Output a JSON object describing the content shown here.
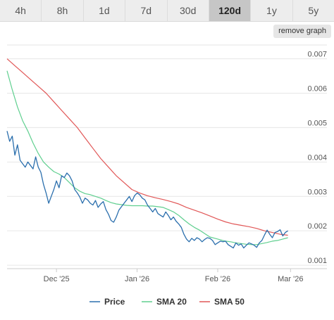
{
  "range_selector": {
    "buttons": [
      "4h",
      "8h",
      "1d",
      "7d",
      "30d",
      "120d",
      "1y",
      "5y"
    ],
    "active": "120d"
  },
  "remove_graph_label": "remove graph",
  "chart_data": {
    "type": "line",
    "title": "",
    "xlabel": "",
    "ylabel": "",
    "x_ticks": [
      {
        "label": "Dec '25",
        "x": 19
      },
      {
        "label": "Jan '26",
        "x": 50
      },
      {
        "label": "Feb '26",
        "x": 81
      },
      {
        "label": "Mar '26",
        "x": 109
      }
    ],
    "x_range": [
      0,
      123
    ],
    "y_ticks": [
      0.001,
      0.002,
      0.003,
      0.004,
      0.005,
      0.006,
      0.007
    ],
    "y_tick_labels": [
      "0.001",
      "0.002",
      "0.003",
      "0.004",
      "0.005",
      "0.006",
      "0.007"
    ],
    "ylim": [
      0.0009,
      0.0074
    ],
    "grid": true,
    "legend_position": "bottom",
    "colors": {
      "price": "#2b6fad",
      "sma20": "#5fcf8f",
      "sma50": "#e15757"
    },
    "series": [
      {
        "name": "Price",
        "color": "#2b6fad",
        "points": [
          [
            0,
            0.0049
          ],
          [
            1,
            0.0046
          ],
          [
            2,
            0.00475
          ],
          [
            3,
            0.0042
          ],
          [
            4,
            0.0045
          ],
          [
            5,
            0.00405
          ],
          [
            6,
            0.00395
          ],
          [
            7,
            0.00385
          ],
          [
            8,
            0.004
          ],
          [
            9,
            0.0039
          ],
          [
            10,
            0.0038
          ],
          [
            11,
            0.00415
          ],
          [
            12,
            0.00385
          ],
          [
            13,
            0.0037
          ],
          [
            14,
            0.00335
          ],
          [
            15,
            0.0031
          ],
          [
            16,
            0.0028
          ],
          [
            17,
            0.003
          ],
          [
            18,
            0.0032
          ],
          [
            19,
            0.00345
          ],
          [
            20,
            0.00325
          ],
          [
            21,
            0.0036
          ],
          [
            22,
            0.00355
          ],
          [
            23,
            0.00368
          ],
          [
            24,
            0.0036
          ],
          [
            25,
            0.00345
          ],
          [
            26,
            0.0032
          ],
          [
            27,
            0.0031
          ],
          [
            28,
            0.00298
          ],
          [
            29,
            0.0028
          ],
          [
            30,
            0.00295
          ],
          [
            31,
            0.0029
          ],
          [
            32,
            0.0028
          ],
          [
            33,
            0.00275
          ],
          [
            34,
            0.00288
          ],
          [
            35,
            0.00268
          ],
          [
            36,
            0.00278
          ],
          [
            37,
            0.00285
          ],
          [
            38,
            0.00262
          ],
          [
            39,
            0.00248
          ],
          [
            40,
            0.0023
          ],
          [
            41,
            0.00225
          ],
          [
            42,
            0.0024
          ],
          [
            43,
            0.0026
          ],
          [
            44,
            0.0027
          ],
          [
            45,
            0.0028
          ],
          [
            46,
            0.0029
          ],
          [
            47,
            0.003
          ],
          [
            48,
            0.00285
          ],
          [
            49,
            0.00302
          ],
          [
            50,
            0.0031
          ],
          [
            51,
            0.00305
          ],
          [
            52,
            0.00295
          ],
          [
            53,
            0.0029
          ],
          [
            54,
            0.00275
          ],
          [
            55,
            0.00265
          ],
          [
            56,
            0.00255
          ],
          [
            57,
            0.00265
          ],
          [
            58,
            0.0025
          ],
          [
            59,
            0.00245
          ],
          [
            60,
            0.0024
          ],
          [
            61,
            0.00255
          ],
          [
            62,
            0.00245
          ],
          [
            63,
            0.00232
          ],
          [
            64,
            0.0024
          ],
          [
            65,
            0.00228
          ],
          [
            66,
            0.0022
          ],
          [
            67,
            0.0021
          ],
          [
            68,
            0.0019
          ],
          [
            69,
            0.00176
          ],
          [
            70,
            0.00168
          ],
          [
            71,
            0.00178
          ],
          [
            72,
            0.00172
          ],
          [
            73,
            0.0018
          ],
          [
            74,
            0.00176
          ],
          [
            75,
            0.00168
          ],
          [
            76,
            0.00175
          ],
          [
            77,
            0.0018
          ],
          [
            78,
            0.00178
          ],
          [
            79,
            0.00172
          ],
          [
            80,
            0.0016
          ],
          [
            81,
            0.00165
          ],
          [
            82,
            0.0017
          ],
          [
            83,
            0.00168
          ],
          [
            84,
            0.0017
          ],
          [
            85,
            0.0016
          ],
          [
            86,
            0.00155
          ],
          [
            87,
            0.0015
          ],
          [
            88,
            0.00165
          ],
          [
            89,
            0.00158
          ],
          [
            90,
            0.00162
          ],
          [
            91,
            0.0015
          ],
          [
            92,
            0.00158
          ],
          [
            93,
            0.00165
          ],
          [
            94,
            0.00162
          ],
          [
            95,
            0.00158
          ],
          [
            96,
            0.00152
          ],
          [
            97,
            0.00165
          ],
          [
            98,
            0.00172
          ],
          [
            99,
            0.00188
          ],
          [
            100,
            0.00202
          ],
          [
            101,
            0.0019
          ],
          [
            102,
            0.0018
          ],
          [
            103,
            0.00195
          ],
          [
            104,
            0.00198
          ],
          [
            105,
            0.00203
          ],
          [
            106,
            0.00185
          ],
          [
            107,
            0.00195
          ],
          [
            108,
            0.002
          ]
        ]
      },
      {
        "name": "SMA 20",
        "color": "#5fcf8f",
        "points": [
          [
            0,
            0.00665
          ],
          [
            2,
            0.0061
          ],
          [
            4,
            0.0056
          ],
          [
            6,
            0.0052
          ],
          [
            8,
            0.0049
          ],
          [
            10,
            0.00455
          ],
          [
            12,
            0.00425
          ],
          [
            14,
            0.004
          ],
          [
            16,
            0.00385
          ],
          [
            18,
            0.00372
          ],
          [
            20,
            0.00365
          ],
          [
            22,
            0.00355
          ],
          [
            24,
            0.0034
          ],
          [
            26,
            0.00325
          ],
          [
            28,
            0.00315
          ],
          [
            30,
            0.00308
          ],
          [
            32,
            0.00305
          ],
          [
            34,
            0.003
          ],
          [
            36,
            0.00295
          ],
          [
            38,
            0.00288
          ],
          [
            40,
            0.00282
          ],
          [
            42,
            0.00278
          ],
          [
            44,
            0.00276
          ],
          [
            46,
            0.00274
          ],
          [
            48,
            0.00273
          ],
          [
            50,
            0.00273
          ],
          [
            52,
            0.00273
          ],
          [
            54,
            0.00272
          ],
          [
            56,
            0.00272
          ],
          [
            58,
            0.0027
          ],
          [
            60,
            0.00268
          ],
          [
            62,
            0.00262
          ],
          [
            64,
            0.00255
          ],
          [
            66,
            0.00245
          ],
          [
            68,
            0.00232
          ],
          [
            70,
            0.0022
          ],
          [
            72,
            0.0021
          ],
          [
            74,
            0.00202
          ],
          [
            76,
            0.00192
          ],
          [
            78,
            0.00182
          ],
          [
            80,
            0.00178
          ],
          [
            82,
            0.00174
          ],
          [
            84,
            0.0017
          ],
          [
            86,
            0.00168
          ],
          [
            88,
            0.00165
          ],
          [
            90,
            0.00163
          ],
          [
            92,
            0.00161
          ],
          [
            94,
            0.0016
          ],
          [
            96,
            0.0016
          ],
          [
            98,
            0.00163
          ],
          [
            100,
            0.00166
          ],
          [
            102,
            0.0017
          ],
          [
            104,
            0.00172
          ],
          [
            106,
            0.00176
          ],
          [
            108,
            0.0018
          ]
        ]
      },
      {
        "name": "SMA 50",
        "color": "#e15757",
        "points": [
          [
            0,
            0.007
          ],
          [
            3,
            0.0068
          ],
          [
            6,
            0.0066
          ],
          [
            9,
            0.0064
          ],
          [
            12,
            0.0062
          ],
          [
            15,
            0.006
          ],
          [
            18,
            0.00575
          ],
          [
            21,
            0.0055
          ],
          [
            24,
            0.00525
          ],
          [
            27,
            0.005
          ],
          [
            30,
            0.0047
          ],
          [
            33,
            0.0044
          ],
          [
            36,
            0.0041
          ],
          [
            39,
            0.00385
          ],
          [
            42,
            0.0036
          ],
          [
            45,
            0.0034
          ],
          [
            48,
            0.0032
          ],
          [
            51,
            0.0031
          ],
          [
            54,
            0.00302
          ],
          [
            57,
            0.00296
          ],
          [
            60,
            0.00291
          ],
          [
            63,
            0.00285
          ],
          [
            66,
            0.00278
          ],
          [
            69,
            0.00268
          ],
          [
            72,
            0.0026
          ],
          [
            75,
            0.00252
          ],
          [
            78,
            0.00243
          ],
          [
            81,
            0.00234
          ],
          [
            84,
            0.00226
          ],
          [
            87,
            0.0022
          ],
          [
            90,
            0.00216
          ],
          [
            93,
            0.00212
          ],
          [
            96,
            0.00207
          ],
          [
            99,
            0.002
          ],
          [
            102,
            0.00195
          ],
          [
            105,
            0.0019
          ],
          [
            108,
            0.00187
          ]
        ]
      }
    ]
  }
}
